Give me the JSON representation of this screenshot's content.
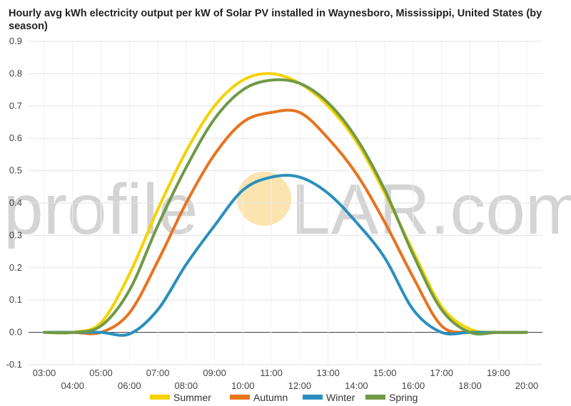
{
  "title": "Hourly avg kWh electricity output per kW of Solar PV installed in Waynesboro, Mississippi, United States (by season)",
  "watermark": {
    "left": "profile",
    "right": "LAR.com",
    "sun_color": "#fbe4b0"
  },
  "chart_data": {
    "type": "line",
    "x": [
      "03:00",
      "04:00",
      "05:00",
      "06:00",
      "07:00",
      "08:00",
      "09:00",
      "10:00",
      "11:00",
      "12:00",
      "13:00",
      "14:00",
      "15:00",
      "16:00",
      "17:00",
      "18:00",
      "19:00",
      "20:00"
    ],
    "xlabels_top": [
      "03:00",
      "05:00",
      "07:00",
      "09:00",
      "11:00",
      "13:00",
      "15:00",
      "17:00",
      "19:00"
    ],
    "xlabels_bottom": [
      "04:00",
      "06:00",
      "08:00",
      "10:00",
      "12:00",
      "14:00",
      "16:00",
      "18:00",
      "20:00"
    ],
    "ylim": [
      -0.1,
      0.9
    ],
    "yticks": [
      "-0.1",
      "0.0",
      "0.1",
      "0.2",
      "0.3",
      "0.4",
      "0.5",
      "0.6",
      "0.7",
      "0.8",
      "0.9"
    ],
    "grid": true,
    "legend_position": "bottom",
    "series": [
      {
        "name": "Summer",
        "color": "#f5d200",
        "values": [
          0.0,
          0.0,
          0.03,
          0.18,
          0.38,
          0.56,
          0.7,
          0.78,
          0.8,
          0.77,
          0.7,
          0.59,
          0.43,
          0.25,
          0.08,
          0.01,
          0.0,
          0.0
        ]
      },
      {
        "name": "Autumn",
        "color": "#e8731f",
        "values": [
          0.0,
          0.0,
          0.0,
          0.06,
          0.22,
          0.4,
          0.55,
          0.65,
          0.68,
          0.68,
          0.6,
          0.49,
          0.34,
          0.17,
          0.02,
          0.0,
          0.0,
          0.0
        ]
      },
      {
        "name": "Winter",
        "color": "#2a8fbd",
        "values": [
          0.0,
          0.0,
          0.0,
          -0.005,
          0.07,
          0.21,
          0.33,
          0.44,
          0.48,
          0.48,
          0.43,
          0.34,
          0.23,
          0.07,
          0.0,
          0.0,
          0.0,
          0.0
        ]
      },
      {
        "name": "Spring",
        "color": "#6f9a46",
        "values": [
          0.0,
          0.0,
          0.02,
          0.13,
          0.33,
          0.51,
          0.66,
          0.75,
          0.78,
          0.77,
          0.71,
          0.6,
          0.44,
          0.24,
          0.07,
          0.0,
          0.0,
          0.0
        ]
      }
    ]
  }
}
